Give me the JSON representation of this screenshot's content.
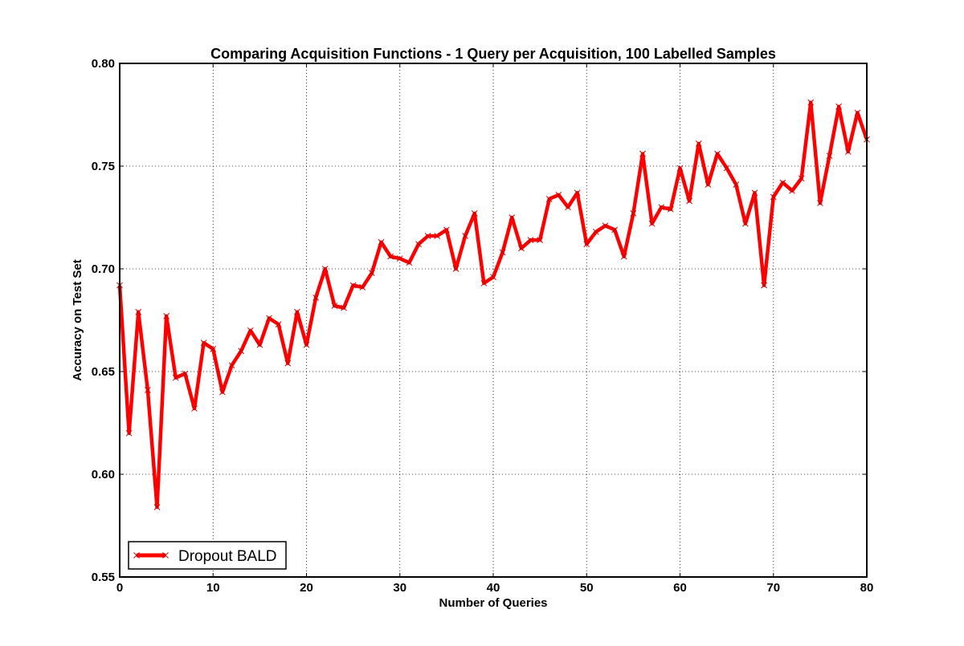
{
  "chart_data": {
    "type": "line",
    "title": "Comparing Acquisition Functions - 1 Query per Acquisition, 100 Labelled Samples",
    "xlabel": "Number of Queries",
    "ylabel": "Accuracy on Test Set",
    "xlim": [
      0,
      80
    ],
    "ylim": [
      0.55,
      0.8
    ],
    "xticks": [
      0,
      10,
      20,
      30,
      40,
      50,
      60,
      70,
      80
    ],
    "xtick_labels": [
      "0",
      "10",
      "20",
      "30",
      "40",
      "50",
      "60",
      "70",
      "80"
    ],
    "yticks": [
      0.55,
      0.6,
      0.65,
      0.7,
      0.75,
      0.8
    ],
    "ytick_labels": [
      "0.55",
      "0.60",
      "0.65",
      "0.70",
      "0.75",
      "0.80"
    ],
    "grid": true,
    "legend_position": "lower-left",
    "series": [
      {
        "name": "Dropout BALD",
        "color": "#ff0000",
        "marker": "x",
        "x": [
          0,
          1,
          2,
          3,
          4,
          5,
          6,
          7,
          8,
          9,
          10,
          11,
          12,
          13,
          14,
          15,
          16,
          17,
          18,
          19,
          20,
          21,
          22,
          23,
          24,
          25,
          26,
          27,
          28,
          29,
          30,
          31,
          32,
          33,
          34,
          35,
          36,
          37,
          38,
          39,
          40,
          41,
          42,
          43,
          44,
          45,
          46,
          47,
          48,
          49,
          50,
          51,
          52,
          53,
          54,
          55,
          56,
          57,
          58,
          59,
          60,
          61,
          62,
          63,
          64,
          65,
          66,
          67,
          68,
          69,
          70,
          71,
          72,
          73,
          74,
          75,
          76,
          77,
          78,
          79,
          80
        ],
        "values": [
          0.692,
          0.62,
          0.679,
          0.641,
          0.584,
          0.677,
          0.647,
          0.649,
          0.632,
          0.664,
          0.661,
          0.64,
          0.653,
          0.66,
          0.67,
          0.663,
          0.676,
          0.673,
          0.654,
          0.679,
          0.663,
          0.686,
          0.7,
          0.682,
          0.681,
          0.692,
          0.691,
          0.698,
          0.713,
          0.706,
          0.705,
          0.703,
          0.712,
          0.716,
          0.716,
          0.719,
          0.7,
          0.716,
          0.727,
          0.693,
          0.696,
          0.708,
          0.725,
          0.71,
          0.714,
          0.714,
          0.734,
          0.736,
          0.73,
          0.737,
          0.712,
          0.718,
          0.721,
          0.719,
          0.706,
          0.727,
          0.756,
          0.722,
          0.73,
          0.729,
          0.749,
          0.733,
          0.761,
          0.741,
          0.756,
          0.749,
          0.741,
          0.722,
          0.737,
          0.692,
          0.735,
          0.742,
          0.738,
          0.744,
          0.781,
          0.732,
          0.755,
          0.779,
          0.757,
          0.776,
          0.763
        ]
      }
    ]
  }
}
